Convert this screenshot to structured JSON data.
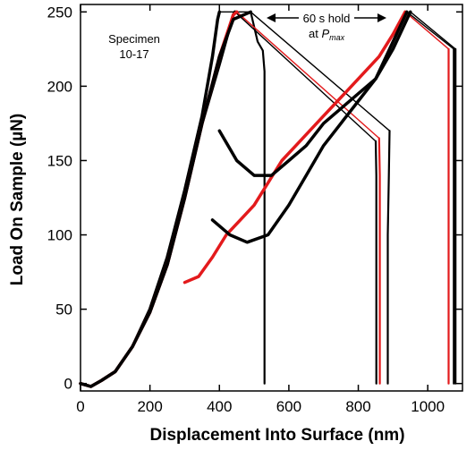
{
  "chart_data": {
    "type": "line",
    "xlabel": "Displacement Into Surface (nm)",
    "ylabel": "Load On Sample (µN)",
    "xlim": [
      0,
      1100
    ],
    "ylim": [
      -5,
      255
    ],
    "xticks": [
      0,
      200,
      400,
      600,
      800,
      1000
    ],
    "yticks": [
      0,
      50,
      100,
      150,
      200,
      250
    ],
    "grid": false,
    "colors": {
      "black": "#000000",
      "red": "#e31a1c"
    },
    "annotations": {
      "specimen_line1": "Specimen",
      "specimen_line2": "10-17",
      "hold_line1": "60 s hold",
      "hold_at": "at ",
      "hold_p": "P",
      "hold_sub": "max"
    },
    "series": [
      {
        "color": "black",
        "loading": [
          [
            0,
            0
          ],
          [
            30,
            -2
          ],
          [
            60,
            2
          ],
          [
            100,
            8
          ],
          [
            150,
            25
          ],
          [
            200,
            50
          ],
          [
            250,
            85
          ],
          [
            300,
            130
          ],
          [
            350,
            180
          ],
          [
            380,
            220
          ],
          [
            395,
            245
          ],
          [
            400,
            250
          ]
        ],
        "pathway": [
          [
            400,
            250
          ],
          [
            490,
            250
          ]
        ],
        "unloading": [
          [
            490,
            250
          ],
          [
            500,
            240
          ],
          [
            510,
            230
          ],
          [
            525,
            224
          ],
          [
            530,
            210
          ],
          [
            530,
            150
          ],
          [
            530,
            60
          ],
          [
            530,
            0
          ]
        ]
      },
      {
        "color": "black",
        "loading": [
          [
            0,
            0
          ],
          [
            30,
            -2
          ],
          [
            60,
            2
          ],
          [
            100,
            8
          ],
          [
            150,
            25
          ],
          [
            200,
            48
          ],
          [
            250,
            80
          ],
          [
            300,
            125
          ],
          [
            350,
            175
          ],
          [
            400,
            215
          ],
          [
            430,
            240
          ],
          [
            440,
            248
          ],
          [
            445,
            250
          ]
        ],
        "pathway": [
          [
            445,
            250
          ],
          [
            850,
            163
          ]
        ],
        "unloading": [
          [
            850,
            163
          ],
          [
            852,
            140
          ],
          [
            852,
            100
          ],
          [
            852,
            60
          ],
          [
            852,
            0
          ]
        ]
      },
      {
        "color": "red",
        "loading": [
          [
            0,
            0
          ],
          [
            30,
            -2
          ],
          [
            60,
            2
          ],
          [
            100,
            8
          ],
          [
            150,
            25
          ],
          [
            200,
            48
          ],
          [
            250,
            80
          ],
          [
            300,
            125
          ],
          [
            350,
            175
          ],
          [
            400,
            220
          ],
          [
            440,
            248
          ],
          [
            450,
            250
          ]
        ],
        "pathway": [
          [
            450,
            250
          ],
          [
            860,
            165
          ]
        ],
        "unloading": [
          [
            860,
            165
          ],
          [
            862,
            140
          ],
          [
            862,
            80
          ],
          [
            862,
            0
          ]
        ]
      },
      {
        "color": "black",
        "loading": [
          [
            0,
            0
          ],
          [
            30,
            -2
          ],
          [
            60,
            2
          ],
          [
            100,
            8
          ],
          [
            150,
            25
          ],
          [
            200,
            48
          ],
          [
            250,
            80
          ],
          [
            300,
            125
          ],
          [
            350,
            175
          ],
          [
            400,
            220
          ],
          [
            440,
            245
          ],
          [
            490,
            250
          ]
        ],
        "pathway": [
          [
            490,
            250
          ],
          [
            890,
            170
          ]
        ],
        "unloading": [
          [
            890,
            170
          ],
          [
            888,
            140
          ],
          [
            885,
            100
          ],
          [
            885,
            0
          ]
        ]
      },
      {
        "color": "red",
        "loading": [
          [
            300,
            68
          ],
          [
            340,
            72
          ],
          [
            380,
            85
          ],
          [
            420,
            100
          ],
          [
            460,
            110
          ],
          [
            500,
            120
          ],
          [
            540,
            135
          ],
          [
            580,
            150
          ],
          [
            620,
            160
          ],
          [
            660,
            170
          ],
          [
            700,
            180
          ],
          [
            740,
            190
          ],
          [
            780,
            200
          ],
          [
            820,
            210
          ],
          [
            860,
            220
          ],
          [
            900,
            235
          ],
          [
            935,
            250
          ]
        ],
        "pathway": [
          [
            935,
            250
          ],
          [
            1060,
            225
          ]
        ],
        "unloading": [
          [
            1060,
            225
          ],
          [
            1060,
            150
          ],
          [
            1060,
            0
          ]
        ]
      },
      {
        "color": "black",
        "loading": [
          [
            380,
            110
          ],
          [
            430,
            100
          ],
          [
            480,
            95
          ],
          [
            540,
            100
          ],
          [
            600,
            120
          ],
          [
            650,
            140
          ],
          [
            700,
            160
          ],
          [
            750,
            175
          ],
          [
            800,
            190
          ],
          [
            850,
            205
          ],
          [
            900,
            230
          ],
          [
            940,
            250
          ]
        ],
        "pathway": [
          [
            940,
            250
          ],
          [
            1075,
            225
          ]
        ],
        "unloading": [
          [
            1075,
            225
          ],
          [
            1075,
            150
          ],
          [
            1075,
            0
          ]
        ]
      },
      {
        "color": "black",
        "loading": [
          [
            400,
            170
          ],
          [
            450,
            150
          ],
          [
            500,
            140
          ],
          [
            550,
            140
          ],
          [
            600,
            150
          ],
          [
            650,
            160
          ],
          [
            700,
            175
          ],
          [
            750,
            185
          ],
          [
            800,
            195
          ],
          [
            850,
            205
          ],
          [
            900,
            225
          ],
          [
            950,
            250
          ]
        ],
        "pathway": [
          [
            950,
            250
          ],
          [
            1080,
            225
          ]
        ],
        "unloading": [
          [
            1080,
            225
          ],
          [
            1080,
            150
          ],
          [
            1080,
            0
          ]
        ]
      }
    ]
  }
}
